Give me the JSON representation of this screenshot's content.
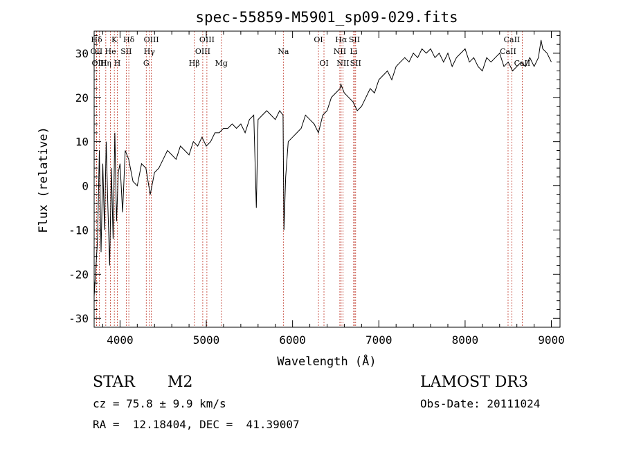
{
  "chart_data": {
    "type": "line",
    "title": "spec-55859-M5901_sp09-029.fits",
    "xlabel": "Wavelength (Å)",
    "ylabel": "Flux (relative)",
    "xlim": [
      3700,
      9100
    ],
    "ylim": [
      -32,
      35
    ],
    "xticks": [
      4000,
      5000,
      6000,
      7000,
      8000,
      9000
    ],
    "yticks": [
      -30,
      -20,
      -10,
      0,
      10,
      20,
      30
    ],
    "series": [
      {
        "name": "flux",
        "x": [
          3700,
          3740,
          3760,
          3780,
          3800,
          3820,
          3840,
          3860,
          3880,
          3900,
          3920,
          3940,
          3960,
          3980,
          4000,
          4030,
          4060,
          4100,
          4150,
          4200,
          4250,
          4300,
          4350,
          4400,
          4450,
          4500,
          4550,
          4600,
          4650,
          4700,
          4750,
          4800,
          4850,
          4900,
          4950,
          5000,
          5050,
          5100,
          5150,
          5200,
          5250,
          5300,
          5350,
          5400,
          5450,
          5500,
          5550,
          5580,
          5600,
          5650,
          5700,
          5750,
          5800,
          5850,
          5890,
          5900,
          5920,
          5950,
          6000,
          6050,
          6100,
          6150,
          6200,
          6250,
          6300,
          6350,
          6400,
          6450,
          6500,
          6550,
          6560,
          6600,
          6650,
          6700,
          6750,
          6800,
          6850,
          6900,
          6950,
          7000,
          7050,
          7100,
          7150,
          7200,
          7250,
          7300,
          7350,
          7400,
          7450,
          7500,
          7550,
          7600,
          7650,
          7700,
          7750,
          7800,
          7850,
          7900,
          7950,
          8000,
          8050,
          8100,
          8150,
          8200,
          8250,
          8300,
          8350,
          8400,
          8450,
          8500,
          8550,
          8600,
          8650,
          8700,
          8750,
          8800,
          8850,
          8880,
          8900,
          8950,
          9000
        ],
        "values": [
          -25,
          -12,
          8,
          -15,
          5,
          -10,
          10,
          -5,
          -18,
          4,
          -12,
          12,
          -8,
          3,
          5,
          -6,
          8,
          6,
          1,
          0,
          5,
          4,
          -2,
          3,
          4,
          6,
          8,
          7,
          6,
          9,
          8,
          7,
          10,
          9,
          11,
          9,
          10,
          12,
          12,
          13,
          13,
          14,
          13,
          14,
          12,
          15,
          16,
          -5,
          15,
          16,
          17,
          16,
          15,
          17,
          16,
          -10,
          2,
          10,
          11,
          12,
          13,
          16,
          15,
          14,
          12,
          16,
          17,
          20,
          21,
          22,
          23,
          21,
          20,
          19,
          17,
          18,
          20,
          22,
          21,
          24,
          25,
          26,
          24,
          27,
          28,
          29,
          28,
          30,
          29,
          31,
          30,
          31,
          29,
          30,
          28,
          30,
          27,
          29,
          30,
          31,
          28,
          29,
          27,
          26,
          29,
          28,
          29,
          30,
          27,
          28,
          26,
          27,
          28,
          27,
          29,
          27,
          29,
          33,
          31,
          30,
          28
        ],
        "color": "#000000"
      }
    ],
    "lines": [
      {
        "label": "Hδ",
        "x": 3728,
        "row": 0
      },
      {
        "label": "OII",
        "x": 3727,
        "row": 1
      },
      {
        "label": "OIII",
        "x": 3760,
        "row": 2
      },
      {
        "label": "K",
        "x": 3934,
        "row": 0
      },
      {
        "label": "He",
        "x": 3889,
        "row": 1
      },
      {
        "label": "Hη",
        "x": 3835,
        "row": 2
      },
      {
        "label": "H",
        "x": 3969,
        "row": 2
      },
      {
        "label": "Hδ",
        "x": 4102,
        "row": 0
      },
      {
        "label": "SII",
        "x": 4072,
        "row": 1
      },
      {
        "label": "OIII",
        "x": 4363,
        "row": 0
      },
      {
        "label": "Hγ",
        "x": 4340,
        "row": 1
      },
      {
        "label": "G",
        "x": 4304,
        "row": 2
      },
      {
        "label": "OIII",
        "x": 5007,
        "row": 0
      },
      {
        "label": "OIII",
        "x": 4959,
        "row": 1
      },
      {
        "label": "Hβ",
        "x": 4861,
        "row": 2
      },
      {
        "label": "Mg",
        "x": 5175,
        "row": 2
      },
      {
        "label": "Na",
        "x": 5893,
        "row": 1
      },
      {
        "label": "OI",
        "x": 6300,
        "row": 0
      },
      {
        "label": "OI",
        "x": 6364,
        "row": 2
      },
      {
        "label": "Hα",
        "x": 6563,
        "row": 0
      },
      {
        "label": "NII",
        "x": 6548,
        "row": 1
      },
      {
        "label": "NII",
        "x": 6584,
        "row": 2
      },
      {
        "label": "SII",
        "x": 6717,
        "row": 0
      },
      {
        "label": "Li",
        "x": 6708,
        "row": 1
      },
      {
        "label": "SII",
        "x": 6731,
        "row": 2
      },
      {
        "label": "CaII",
        "x": 8542,
        "row": 0
      },
      {
        "label": "CaII",
        "x": 8498,
        "row": 1
      },
      {
        "label": "CaII",
        "x": 8662,
        "row": 2
      }
    ]
  },
  "info": {
    "object_class": "STAR",
    "subclass": "M2",
    "survey": "LAMOST DR3",
    "cz": "cz = 75.8 ± 9.9 km/s",
    "obs_date": "Obs-Date: 20111024",
    "coords": "RA =  12.18404, DEC =  41.39007"
  }
}
